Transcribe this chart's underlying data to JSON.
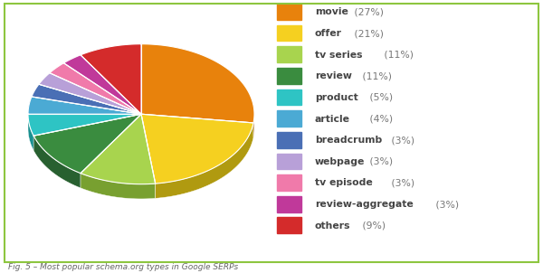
{
  "labels": [
    "movie",
    "offer",
    "tv series",
    "review",
    "product",
    "article",
    "breadcrumb",
    "webpage",
    "tv episode",
    "review-aggregate",
    "others"
  ],
  "percentages": [
    27,
    21,
    11,
    11,
    5,
    4,
    3,
    3,
    3,
    3,
    9
  ],
  "colors": [
    "#E8820C",
    "#F5D020",
    "#A8D44E",
    "#3A8C3F",
    "#2EC4C4",
    "#4BAAD4",
    "#4A6FB5",
    "#B8A0D8",
    "#F07AAA",
    "#C0399A",
    "#D42B2B"
  ],
  "dark_colors": [
    "#A85A08",
    "#B09A10",
    "#78A030",
    "#286030",
    "#1A9090",
    "#3080A8",
    "#304F85",
    "#8870A8",
    "#C05080",
    "#902070",
    "#A01A1A"
  ],
  "legend_labels": [
    "movie (27%)",
    "offer (21%)",
    "tv series (11%)",
    "review (11%)",
    "product (5%)",
    "article (4%)",
    "breadcrumb (3%)",
    "webpage (3%)",
    "tv episode (3%)",
    "review-aggregate (3%)",
    "others (9%)"
  ],
  "bold_labels": [
    "movie",
    "offer",
    "tv series",
    "review",
    "product",
    "article",
    "breadcrumb",
    "webpage",
    "tv episode",
    "review-aggregate",
    "others"
  ],
  "caption": "Fig. 5 – Most popular schema.org types in Google SERPs",
  "bg_color": "#ffffff",
  "border_color": "#8DC63F",
  "figsize": [
    6.0,
    3.02
  ],
  "dpi": 100
}
